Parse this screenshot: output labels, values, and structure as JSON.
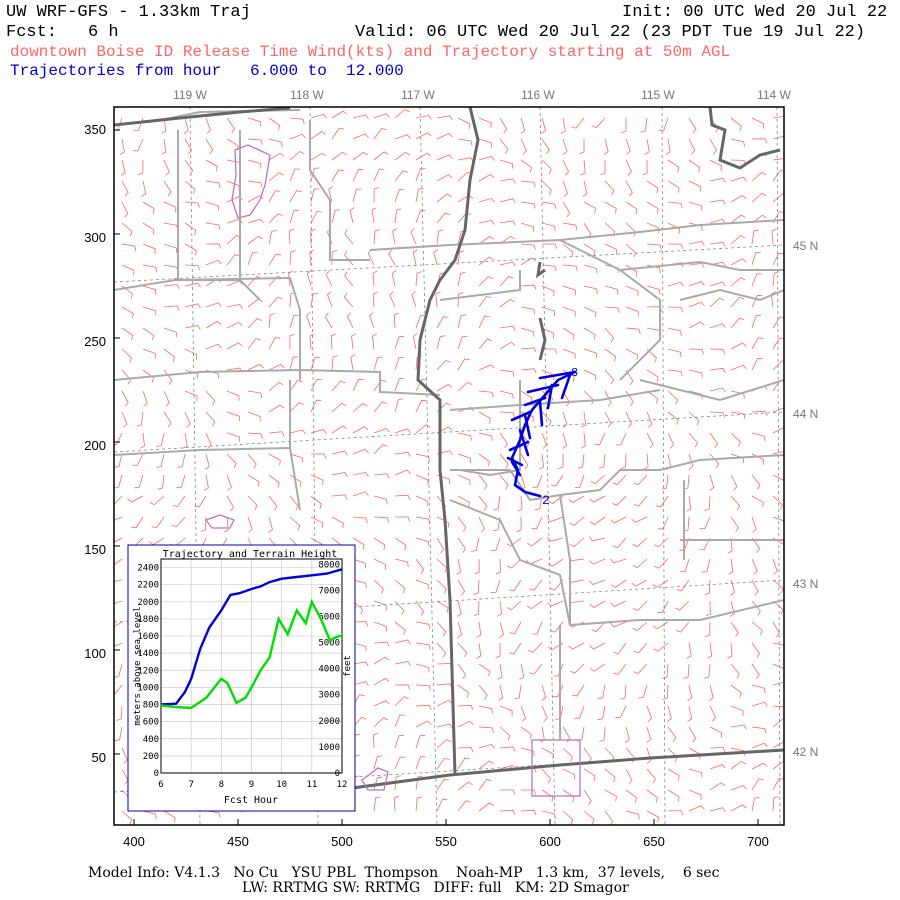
{
  "header": {
    "title": "UW WRF-GFS - 1.33km Traj",
    "init": "Init: 00 UTC Wed 20 Jul 22",
    "fcst_label": "Fcst:",
    "fcst_value": "6 h",
    "valid": "Valid: 06 UTC Wed 20 Jul 22 (23 PDT Tue 19 Jul 22)",
    "release": "downtown Boise ID Release Time Wind(kts) and Trajectory starting at 50m AGL",
    "traj_hours": "Trajectories from hour   6.000 to  12.000"
  },
  "map": {
    "lon_labels": [
      "119 W",
      "118 W",
      "117 W",
      "116 W",
      "115 W",
      "114 W"
    ],
    "lat_labels": [
      "45 N",
      "44 N",
      "43 N",
      "42 N"
    ],
    "y_ticks": [
      "350",
      "300",
      "250",
      "200",
      "150",
      "100",
      "50"
    ],
    "x_ticks": [
      "400",
      "450",
      "500",
      "550",
      "600",
      "650",
      "700"
    ],
    "traj_start_label": "2",
    "traj_end_label": "8",
    "colors": {
      "wind_barb": "#ff6666",
      "trajectory": "#0000dd",
      "border": "#aaaaaa",
      "state_line": "#666666",
      "city": "#bb77bb"
    }
  },
  "inset": {
    "title": "Trajectory and Terrain Height",
    "y_left_label": "meters above sea level",
    "y_right_label": "feet",
    "x_label": "Fcst Hour",
    "y_left_ticks": [
      "2400",
      "2200",
      "2000",
      "1800",
      "1600",
      "1400",
      "1200",
      "1000",
      "800",
      "600",
      "400",
      "200",
      "0"
    ],
    "y_right_ticks": [
      "8000",
      "7000",
      "6000",
      "5000",
      "4000",
      "3000",
      "2000",
      "1000",
      "0"
    ],
    "x_ticks": [
      "6",
      "7",
      "8",
      "9",
      "10",
      "11",
      "12"
    ]
  },
  "chart_data": {
    "type": "line",
    "title": "Trajectory and Terrain Height",
    "xlabel": "Fcst Hour",
    "ylabel": "meters above sea level",
    "xlim": [
      6,
      12
    ],
    "ylim": [
      0,
      2500
    ],
    "grid": true,
    "series": [
      {
        "color": "#0000dd",
        "x": [
          6.0,
          6.5,
          6.8,
          7.0,
          7.3,
          7.6,
          8.0,
          8.3,
          8.6,
          9.0,
          9.3,
          9.6,
          10.0,
          10.5,
          11.0,
          11.5,
          12.0
        ],
        "y": [
          800,
          810,
          950,
          1100,
          1450,
          1700,
          1900,
          2080,
          2100,
          2150,
          2180,
          2230,
          2270,
          2290,
          2310,
          2330,
          2380
        ]
      },
      {
        "color": "#00dd00",
        "x": [
          6.0,
          6.5,
          7.0,
          7.5,
          8.0,
          8.2,
          8.5,
          8.8,
          9.0,
          9.3,
          9.6,
          9.9,
          10.2,
          10.5,
          10.8,
          11.0,
          11.3,
          11.6,
          11.9,
          12.0
        ],
        "y": [
          790,
          770,
          760,
          880,
          1100,
          1050,
          820,
          880,
          1000,
          1200,
          1350,
          1800,
          1620,
          1900,
          1750,
          2000,
          1800,
          1550,
          1600,
          1600
        ]
      }
    ]
  },
  "footer": {
    "line1": "Model Info: V4.1.3   No Cu   YSU PBL  Thompson    Noah-MP   1.3 km,  37 levels,    6 sec",
    "line2": "LW: RRTMG SW: RRTMG   DIFF: full   KM: 2D Smagor"
  }
}
